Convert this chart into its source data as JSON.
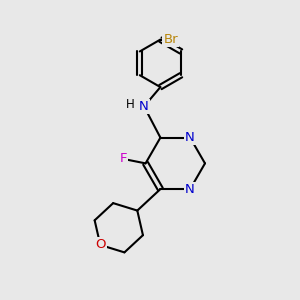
{
  "background_color": "#e8e8e8",
  "atom_colors": {
    "C": "#000000",
    "N": "#0000cd",
    "O": "#cc0000",
    "F": "#cc00cc",
    "Br": "#b8860b",
    "H": "#000000"
  },
  "bond_color": "#000000",
  "bond_width": 1.5,
  "font_size": 9.5,
  "fig_width": 3.0,
  "fig_height": 3.0,
  "dpi": 100
}
